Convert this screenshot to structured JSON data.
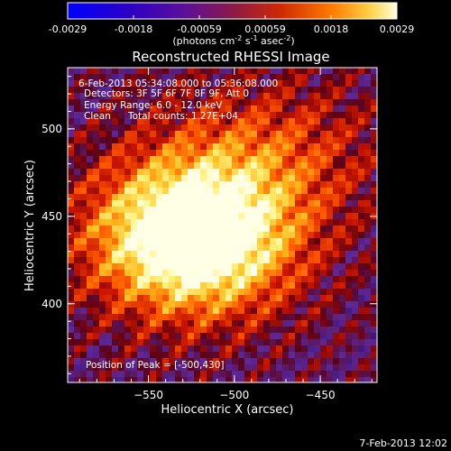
{
  "colorbar": {
    "ticks": [
      "-0.0029",
      "-0.0018",
      "-0.00059",
      "0.00059",
      "0.0018",
      "0.0029"
    ],
    "unit_label": "(photons cm",
    "unit_exp1": "-2",
    "unit_mid": " s",
    "unit_exp2": "-1",
    "unit_end": " asec",
    "unit_exp3": "-2",
    "unit_close": ")"
  },
  "title": "Reconstructed RHESSI Image",
  "info": {
    "time_range": "6-Feb-2013 05:34:08.000 to 05:36:08.000",
    "detectors": "Detectors: 3F 5F 6F 7F 8F 9F, Att 0",
    "energy": "Energy Range: 6.0 - 12.0 keV",
    "algorithm": "Clean",
    "counts": "Total counts: 1.27E+04",
    "peak": "Position of Peak = [-500,430]"
  },
  "axes": {
    "x_label": "Heliocentric X (arcsec)",
    "y_label": "Heliocentric Y (arcsec)",
    "x_ticks": [
      "-550",
      "-500",
      "-450"
    ],
    "y_ticks": [
      "500",
      "450",
      "400"
    ]
  },
  "footer_date": "7-Feb-2013 12:02",
  "image_data": {
    "description_source": "RHESSI reconstructed flux map",
    "x_range": [
      -597,
      -417
    ],
    "y_range": [
      355,
      535
    ],
    "value_range": [
      -0.0029,
      0.0029
    ],
    "peak": [
      -500,
      430
    ]
  }
}
